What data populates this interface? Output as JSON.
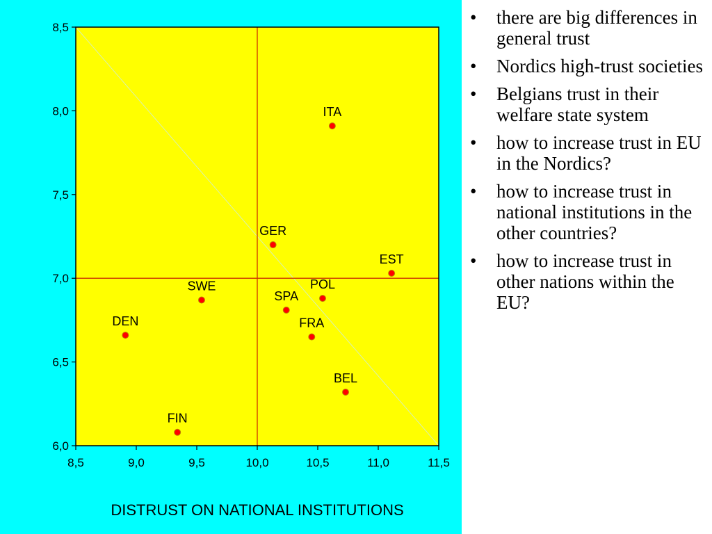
{
  "chart_data": {
    "type": "scatter",
    "title": "",
    "xlabel": "DISTRUST ON NATIONAL INSTITUTIONS",
    "ylabel": "",
    "xlim": [
      8.5,
      11.5
    ],
    "ylim": [
      6.0,
      8.5
    ],
    "x_ticks": [
      8.5,
      9.0,
      9.5,
      10.0,
      10.5,
      11.0,
      11.5
    ],
    "y_ticks": [
      6.0,
      6.5,
      7.0,
      7.5,
      8.0,
      8.5
    ],
    "x_tick_labels": [
      "8,5",
      "9,0",
      "9,5",
      "10,0",
      "10,5",
      "11,0",
      "11,5"
    ],
    "y_tick_labels": [
      "6,0",
      "6,5",
      "7,0",
      "7,5",
      "8,0",
      "8,5"
    ],
    "reference_lines": {
      "x": 10.0,
      "y": 7.0
    },
    "diagonal": {
      "from": [
        8.5,
        8.5
      ],
      "to": [
        11.5,
        6.0
      ]
    },
    "points": [
      {
        "label": "ITA",
        "x": 10.62,
        "y": 7.91
      },
      {
        "label": "GER",
        "x": 10.13,
        "y": 7.2
      },
      {
        "label": "EST",
        "x": 11.11,
        "y": 7.03
      },
      {
        "label": "SWE",
        "x": 9.54,
        "y": 6.87
      },
      {
        "label": "POL",
        "x": 10.54,
        "y": 6.88
      },
      {
        "label": "SPA",
        "x": 10.24,
        "y": 6.81
      },
      {
        "label": "DEN",
        "x": 8.91,
        "y": 6.66
      },
      {
        "label": "FRA",
        "x": 10.45,
        "y": 6.65
      },
      {
        "label": "BEL",
        "x": 10.73,
        "y": 6.32
      },
      {
        "label": "FIN",
        "x": 9.34,
        "y": 6.08
      }
    ],
    "colors": {
      "background": "#00ffff",
      "plot_area": "#ffff00",
      "reference_line": "#cc3300",
      "point": "#ff0000"
    }
  },
  "bullets": [
    "there are big differences in general trust",
    "Nordics high-trust societies",
    "Belgians trust in their welfare state system",
    "how to increase trust in EU in the Nordics?",
    "how to increase trust in national institutions in the other countries?",
    "how to increase trust in other nations within the EU?"
  ],
  "bullet_symbol": "•"
}
